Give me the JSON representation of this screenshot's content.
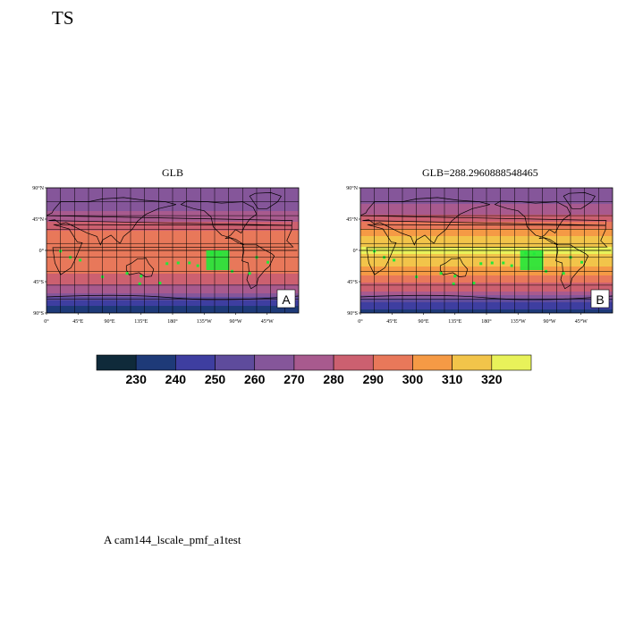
{
  "page_title": "TS",
  "panels": [
    {
      "id": "A",
      "title": "GLB",
      "badge": "A"
    },
    {
      "id": "B",
      "title": "GLB=288.2960888548465",
      "badge": "B"
    }
  ],
  "lat_labels": [
    "90°N",
    "45°N",
    "0°",
    "45°S",
    "90°S"
  ],
  "lon_labels": [
    "0°",
    "45°E",
    "90°E",
    "135°E",
    "180°",
    "135°W",
    "90°W",
    "45°W"
  ],
  "colorbar": {
    "labels": [
      "230",
      "240",
      "250",
      "260",
      "270",
      "280",
      "290",
      "300",
      "310",
      "320"
    ],
    "colors": [
      "#0f2a3a",
      "#1e3a78",
      "#3e3ea0",
      "#5e4b9c",
      "#85569a",
      "#a85a8e",
      "#cc6070",
      "#e8785a",
      "#f59a45",
      "#f2c44a",
      "#e8f25a"
    ]
  },
  "footer": "A  cam144_lscale_pmf_a1test",
  "chart_data": [
    {
      "type": "heatmap",
      "title": "GLB",
      "variable": "TS",
      "lat_ticks": [
        "90°N",
        "45°N",
        "0°",
        "45°S",
        "90°S"
      ],
      "lon_ticks": [
        "0°",
        "45°E",
        "90°E",
        "135°E",
        "180°",
        "135°W",
        "90°W",
        "45°W"
      ],
      "levels": [
        230,
        240,
        250,
        260,
        270,
        280,
        290,
        300,
        310,
        320
      ],
      "zonal_profile": [
        {
          "lat": 90,
          "value": 260
        },
        {
          "lat": 60,
          "value": 268
        },
        {
          "lat": 45,
          "value": 278
        },
        {
          "lat": 30,
          "value": 288
        },
        {
          "lat": 15,
          "value": 298
        },
        {
          "lat": 0,
          "value": 300
        },
        {
          "lat": -15,
          "value": 298
        },
        {
          "lat": -30,
          "value": 292
        },
        {
          "lat": -45,
          "value": 283
        },
        {
          "lat": -60,
          "value": 272
        },
        {
          "lat": -75,
          "value": 245
        },
        {
          "lat": -90,
          "value": 232
        }
      ]
    },
    {
      "type": "heatmap",
      "title": "GLB=288.2960888548465",
      "variable": "TS",
      "lat_ticks": [
        "90°N",
        "45°N",
        "0°",
        "45°S",
        "90°S"
      ],
      "lon_ticks": [
        "0°",
        "45°E",
        "90°E",
        "135°E",
        "180°",
        "135°W",
        "90°W",
        "45°W"
      ],
      "levels": [
        230,
        240,
        250,
        260,
        270,
        280,
        290,
        300,
        310,
        320
      ],
      "zonal_profile": [
        {
          "lat": 90,
          "value": 262
        },
        {
          "lat": 60,
          "value": 272
        },
        {
          "lat": 45,
          "value": 285
        },
        {
          "lat": 30,
          "value": 300
        },
        {
          "lat": 15,
          "value": 318
        },
        {
          "lat": 0,
          "value": 321
        },
        {
          "lat": -15,
          "value": 318
        },
        {
          "lat": -30,
          "value": 305
        },
        {
          "lat": -45,
          "value": 292
        },
        {
          "lat": -60,
          "value": 278
        },
        {
          "lat": -75,
          "value": 248
        },
        {
          "lat": -90,
          "value": 234
        }
      ]
    }
  ]
}
